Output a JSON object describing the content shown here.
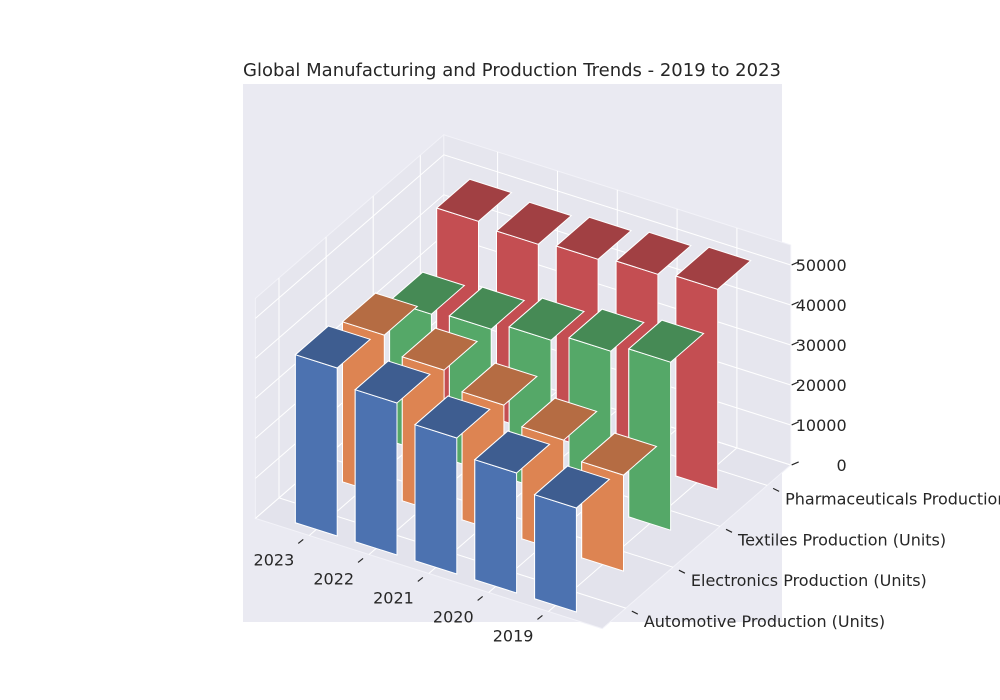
{
  "chart_data": {
    "type": "bar3d",
    "title": "Global Manufacturing and Production Trends - 2019 to 2023",
    "categories": [
      "2019",
      "2020",
      "2021",
      "2022",
      "2023"
    ],
    "series_labels": [
      "Automotive Production (Units)",
      "Electronics Production (Units)",
      "Textiles Production (Units)",
      "Pharmaceuticals Production (Units)"
    ],
    "series": [
      {
        "name": "Automotive Production (Units)",
        "color": "#4c72b0",
        "values": [
          26000,
          30000,
          34000,
          38000,
          42000
        ]
      },
      {
        "name": "Electronics Production (Units)",
        "color": "#dd8452",
        "values": [
          24000,
          28000,
          32000,
          36000,
          40000
        ]
      },
      {
        "name": "Textiles Production (Units)",
        "color": "#55a868",
        "values": [
          42000,
          40000,
          38000,
          36000,
          35000
        ]
      },
      {
        "name": "Pharmaceuticals Production (Units)",
        "color": "#c44e52",
        "values": [
          50000,
          49000,
          48000,
          47000,
          48000
        ]
      }
    ],
    "z_ticks": [
      0,
      10000,
      20000,
      30000,
      40000,
      50000
    ],
    "zlim": [
      0,
      55000
    ],
    "grid": true,
    "style": "seaborn-darkgrid"
  }
}
